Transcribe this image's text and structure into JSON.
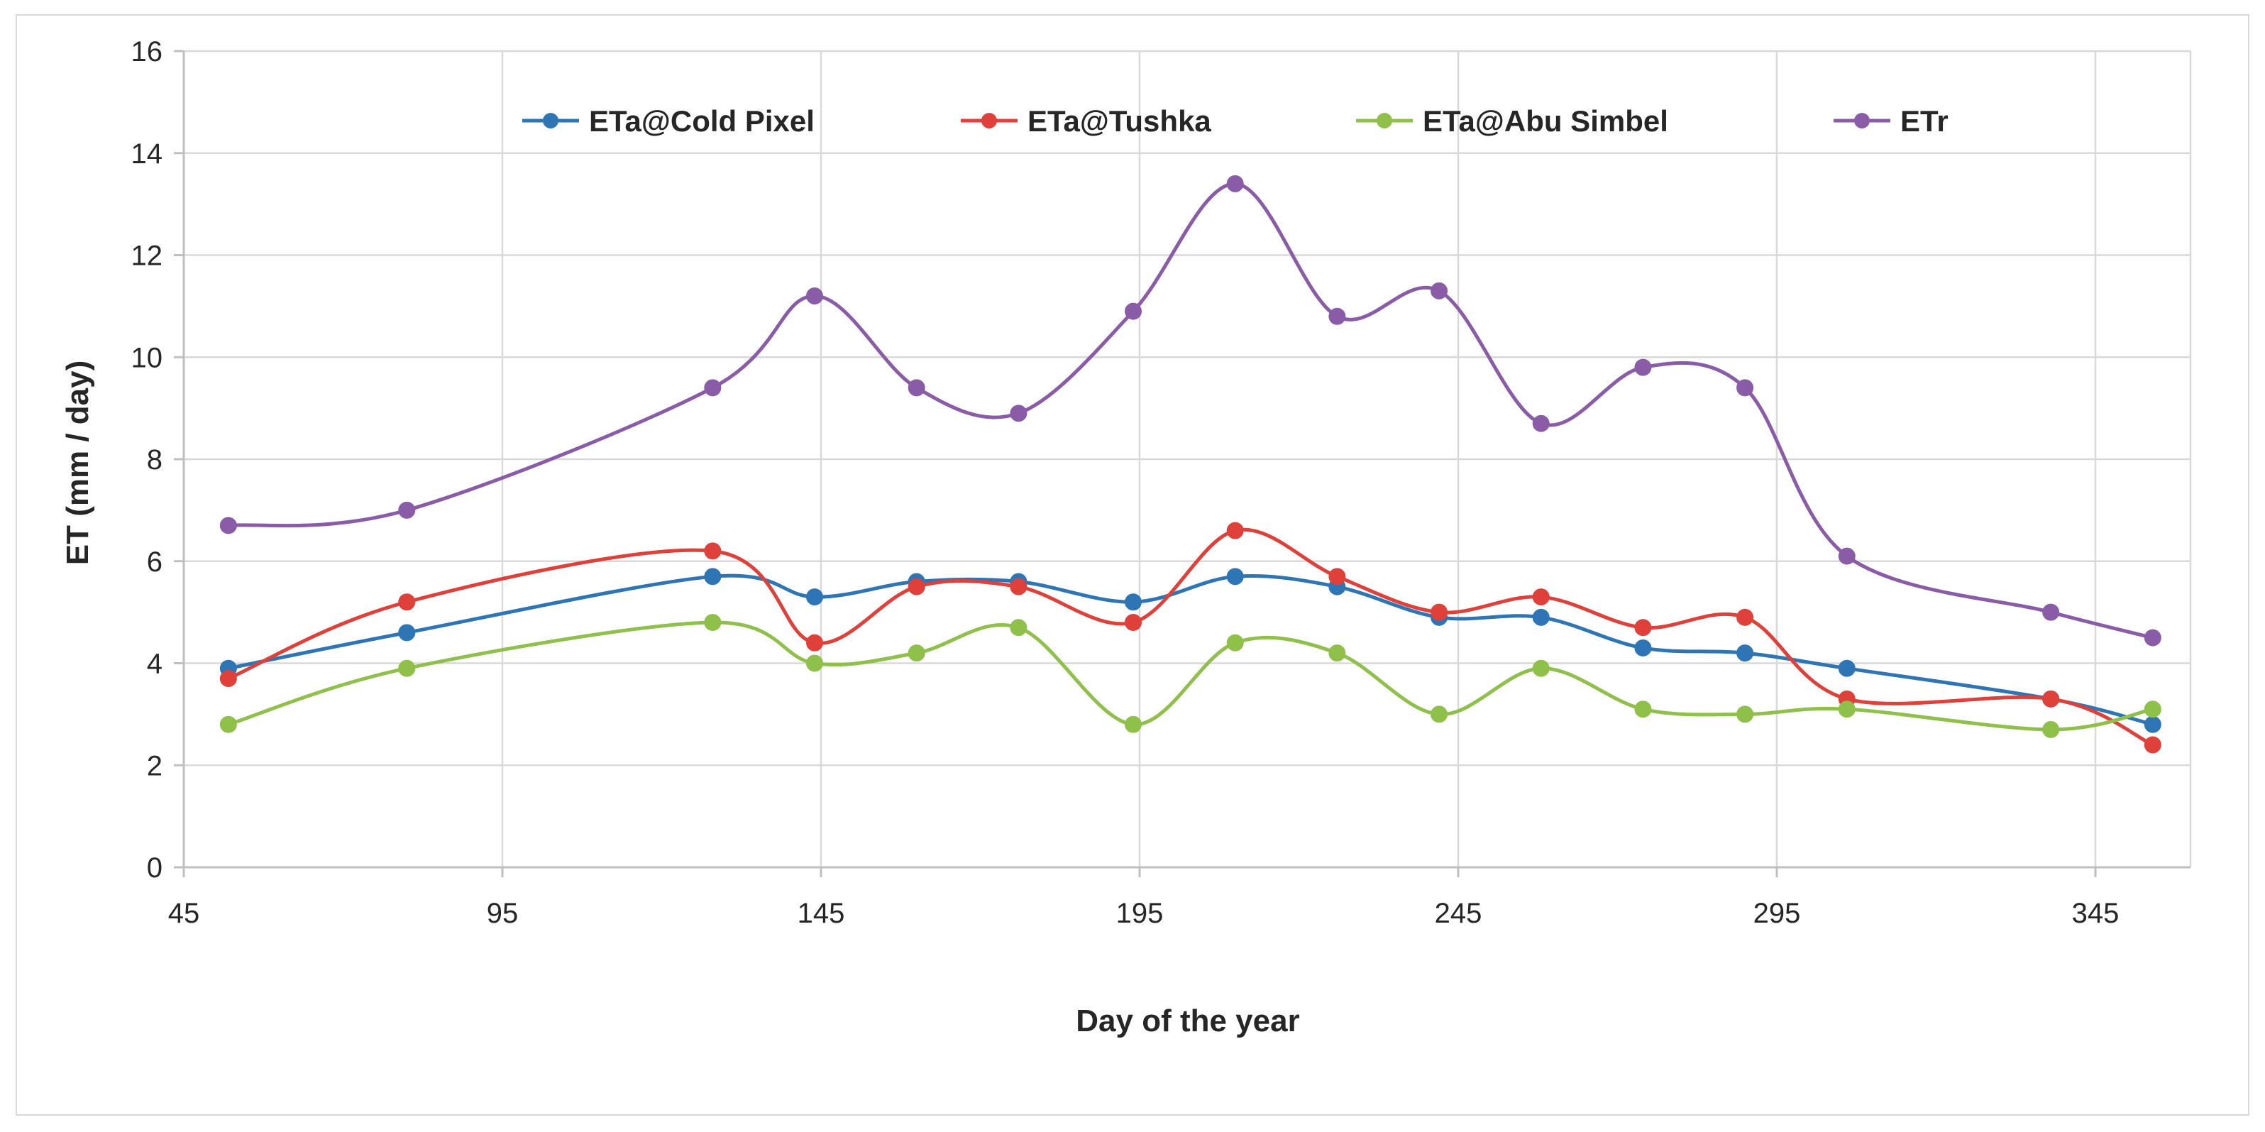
{
  "chart_data": {
    "type": "line",
    "smooth": true,
    "title": "",
    "xlabel": "Day of the year",
    "ylabel": "ET (mm / day)",
    "xlim": [
      45,
      360
    ],
    "ylim": [
      0,
      16
    ],
    "x_ticks": [
      45,
      95,
      145,
      195,
      245,
      295,
      345
    ],
    "y_ticks": [
      0,
      2,
      4,
      6,
      8,
      10,
      12,
      14,
      16
    ],
    "grid": true,
    "legend_position": "top",
    "x": [
      52,
      80,
      128,
      144,
      160,
      176,
      194,
      210,
      226,
      242,
      258,
      274,
      290,
      306,
      338,
      354
    ],
    "series": [
      {
        "name": "ETa@Cold Pixel",
        "color": "#2e75b6",
        "values": [
          3.9,
          4.6,
          5.7,
          5.3,
          5.6,
          5.6,
          5.2,
          5.7,
          5.5,
          4.9,
          4.9,
          4.3,
          4.2,
          3.9,
          3.3,
          2.8
        ]
      },
      {
        "name": "ETa@Tushka",
        "color": "#e0403a",
        "values": [
          3.7,
          5.2,
          6.2,
          4.4,
          5.5,
          5.5,
          4.8,
          6.6,
          5.7,
          5.0,
          5.3,
          4.7,
          4.9,
          3.3,
          3.3,
          2.4
        ]
      },
      {
        "name": "ETa@Abu Simbel",
        "color": "#8fc04a",
        "values": [
          2.8,
          3.9,
          4.8,
          4.0,
          4.2,
          4.7,
          2.8,
          4.4,
          4.2,
          3.0,
          3.9,
          3.1,
          3.0,
          3.1,
          2.7,
          3.1
        ]
      },
      {
        "name": "ETr",
        "color": "#8a5ca8",
        "values": [
          6.7,
          7.0,
          9.4,
          11.2,
          9.4,
          8.9,
          10.9,
          13.4,
          10.8,
          11.3,
          8.7,
          9.8,
          9.4,
          6.1,
          5.0,
          4.5
        ]
      }
    ]
  }
}
